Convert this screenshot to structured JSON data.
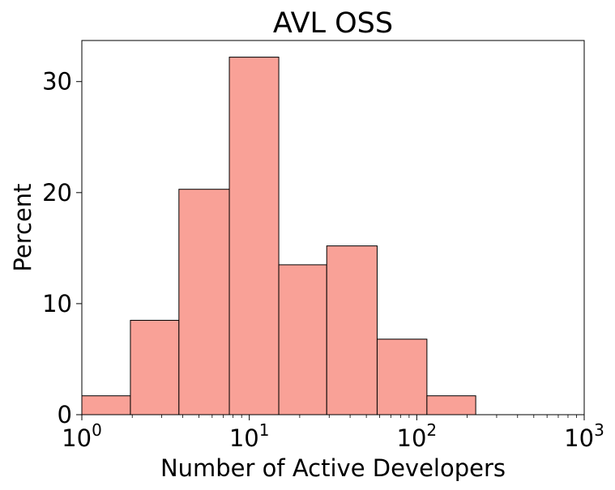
{
  "chart_data": {
    "type": "bar",
    "title": "AVL OSS",
    "xlabel": "Number of Active Developers",
    "ylabel": "Percent",
    "x_scale": "log",
    "xlim": [
      1,
      1000
    ],
    "ylim": [
      0,
      33.7
    ],
    "grid": false,
    "x_ticks": [
      {
        "base": "10",
        "exp": "0",
        "value": 1
      },
      {
        "base": "10",
        "exp": "1",
        "value": 10
      },
      {
        "base": "10",
        "exp": "2",
        "value": 100
      },
      {
        "base": "10",
        "exp": "3",
        "value": 1000
      }
    ],
    "y_ticks": [
      {
        "label": "0",
        "value": 0
      },
      {
        "label": "10",
        "value": 10
      },
      {
        "label": "20",
        "value": 20
      },
      {
        "label": "30",
        "value": 30
      }
    ],
    "bins": [
      {
        "x0": 1,
        "x1": 1.95,
        "value": 1.7
      },
      {
        "x0": 1.95,
        "x1": 3.8,
        "value": 8.5
      },
      {
        "x0": 3.8,
        "x1": 7.6,
        "value": 20.3
      },
      {
        "x0": 7.6,
        "x1": 15,
        "value": 32.2
      },
      {
        "x0": 15,
        "x1": 29,
        "value": 13.5
      },
      {
        "x0": 29,
        "x1": 58,
        "value": 15.2
      },
      {
        "x0": 58,
        "x1": 115,
        "value": 6.8
      },
      {
        "x0": 115,
        "x1": 225,
        "value": 1.7
      }
    ],
    "bar_color": "#f9a197",
    "edge_color": "#000000"
  }
}
